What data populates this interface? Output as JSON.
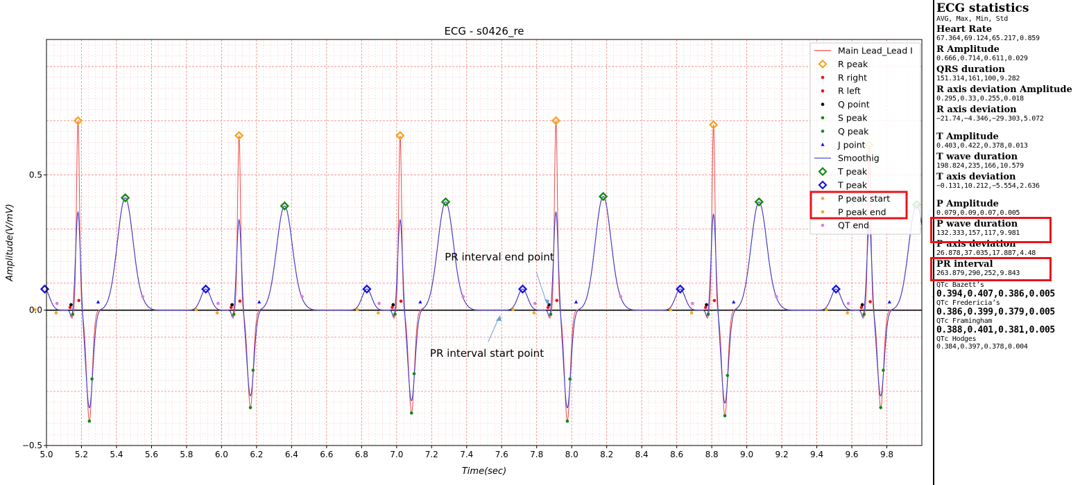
{
  "chart_data": {
    "type": "line",
    "title": "ECG - s0426_re",
    "xlabel": "Time(sec)",
    "ylabel": "Amplitude(V/mV)",
    "xlim": [
      5.0,
      10.0
    ],
    "ylim": [
      -0.5,
      1.0
    ],
    "xticks": [
      "5.0",
      "5.2",
      "5.4",
      "5.6",
      "5.8",
      "6.0",
      "6.2",
      "6.4",
      "6.6",
      "6.8",
      "7.0",
      "7.2",
      "7.4",
      "7.6",
      "7.8",
      "8.0",
      "8.2",
      "8.4",
      "8.6",
      "8.8",
      "9.0",
      "9.2",
      "9.4",
      "9.6",
      "9.8"
    ],
    "yticks": [
      "−0.5",
      "0.0",
      "0.5"
    ],
    "grid": "on",
    "legend_position": "top-right",
    "beats": [
      {
        "r": 5.18,
        "r_amp": 0.7,
        "s_amp": -0.41,
        "t": 5.45,
        "t_amp": 0.415,
        "p_amp": 0.078
      },
      {
        "r": 6.1,
        "r_amp": 0.645,
        "s_amp": -0.36,
        "t": 6.36,
        "t_amp": 0.385,
        "p_amp": 0.078
      },
      {
        "r": 7.02,
        "r_amp": 0.645,
        "s_amp": -0.38,
        "t": 7.28,
        "t_amp": 0.4,
        "p_amp": 0.078
      },
      {
        "r": 7.91,
        "r_amp": 0.7,
        "s_amp": -0.41,
        "t": 8.18,
        "t_amp": 0.42,
        "p_amp": 0.078
      },
      {
        "r": 8.81,
        "r_amp": 0.685,
        "s_amp": -0.39,
        "t": 9.07,
        "t_amp": 0.4,
        "p_amp": 0.078
      },
      {
        "r": 9.7,
        "r_amp": 0.61,
        "s_amp": -0.36,
        "t": 9.97,
        "t_amp": 0.39,
        "p_amp": 0.078
      }
    ],
    "series": [
      {
        "name": "Main Lead_Lead I",
        "color": "#f04a4a"
      },
      {
        "name": "R peak",
        "color": "#f5a623",
        "marker": "diamond-open"
      },
      {
        "name": "R right",
        "color": "#e8141b",
        "marker": "dot"
      },
      {
        "name": "R left",
        "color": "#e8141b",
        "marker": "dot"
      },
      {
        "name": "Q point",
        "color": "#000000",
        "marker": "dot"
      },
      {
        "name": "S peak",
        "color": "#138a13",
        "marker": "dot"
      },
      {
        "name": "Q peak",
        "color": "#138a13",
        "marker": "dot"
      },
      {
        "name": "J point",
        "color": "#1515e0",
        "marker": "triangle"
      },
      {
        "name": "Smoothig",
        "color": "#3d3dcc"
      },
      {
        "name": "T peak",
        "color": "#138a13",
        "marker": "diamond-open"
      },
      {
        "name": "T peak",
        "color": "#1515e0",
        "marker": "diamond-open"
      },
      {
        "name": "P peak start",
        "color": "#f5a623",
        "marker": "dot"
      },
      {
        "name": "P peak end",
        "color": "#f5a623",
        "marker": "dot"
      },
      {
        "name": "QT end",
        "color": "#e07ae0",
        "marker": "dot"
      }
    ],
    "annotations": [
      {
        "text": "PR interval end point",
        "target_x": 7.87,
        "target_y": 0.01
      },
      {
        "text": "PR interval start point",
        "target_x": 7.61,
        "target_y": -0.01
      }
    ]
  },
  "stats": {
    "title": "ECG statistics",
    "subtitle": "AVG, Max, Min, Std",
    "items": [
      {
        "head": "Heart Rate",
        "value": "67.364,69.124,65.217,0.859"
      },
      {
        "head": "R Amplitude",
        "value": "0.666,0.714,0.611,0.029"
      },
      {
        "head": "QRS duration",
        "value": "151.314,161,100,9.282"
      },
      {
        "head": "R axis deviation Amplitude",
        "value": "0.295,0.33,0.255,0.018"
      },
      {
        "head": "R axis deviation",
        "value": "−21.74,−4.346,−29.303,5.072"
      },
      {
        "head": "T Amplitude",
        "value": "0.403,0.422,0.378,0.013"
      },
      {
        "head": "T wave duration",
        "value": "198.824,235,166,10.579"
      },
      {
        "head": "T axis deviation",
        "value": "−0.131,10.212,−5.554,2.636"
      },
      {
        "head": "P Amplitude",
        "value": "0.079,0.09,0.07,0.005"
      },
      {
        "head": "P wave duration",
        "value": "132.333,157,117,9.981"
      },
      {
        "head": "P axis deviation",
        "value": "26.878,37.035,17.887,4.48"
      },
      {
        "head": "PR interval",
        "value": "263.879,290,252,9.843"
      }
    ],
    "qtc": [
      {
        "label": "QTc Bazett’s",
        "value": "0.394,0.407,0.386,0.005"
      },
      {
        "label": "QTc Fredericia’s",
        "value": "0.386,0.399,0.379,0.005"
      },
      {
        "label": "QTc Framingham",
        "value": "0.388,0.401,0.381,0.005"
      },
      {
        "label": "QTc Hodges",
        "value": "0.384,0.397,0.378,0.004"
      }
    ]
  }
}
